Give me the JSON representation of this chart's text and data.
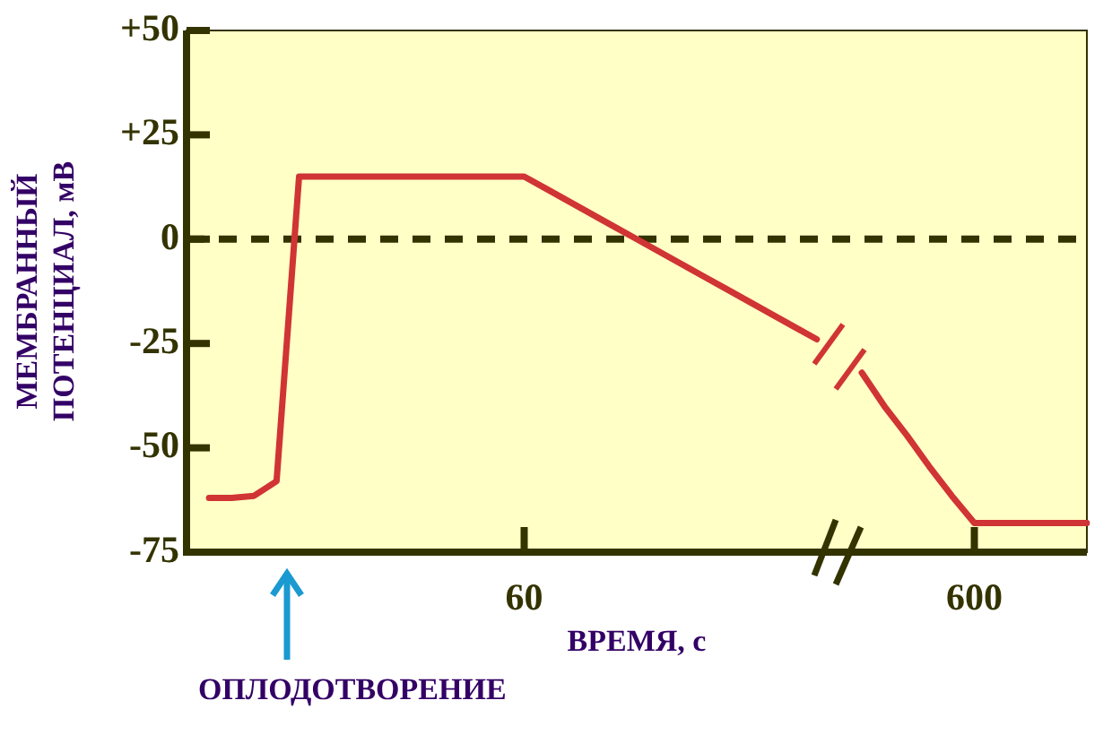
{
  "chart_data": {
    "type": "line",
    "xlabel": "ВРЕМЯ, с",
    "ylabel": "МЕМБРАННЫЙ ПОТЕНЦИАЛ, мВ",
    "categories": [
      null,
      null,
      null,
      null,
      null,
      null,
      null,
      null,
      null,
      null,
      null,
      null,
      null,
      null,
      null,
      "60",
      null,
      null,
      null,
      null,
      null,
      null,
      null,
      null,
      null,
      null,
      null,
      null,
      null,
      null,
      null,
      null,
      null,
      null,
      null,
      "600",
      null,
      null,
      null,
      null,
      null
    ],
    "series": [
      {
        "color": "#d03434",
        "values": [
          null,
          -62,
          -62,
          -61.5,
          -58,
          15,
          15,
          15,
          15,
          15,
          15,
          15,
          15,
          15,
          15,
          15,
          12,
          9,
          6,
          3,
          0,
          -3,
          -6,
          -9,
          -12,
          -15,
          -18,
          -21,
          -24,
          null,
          -32,
          -40,
          -47,
          -54.5,
          -61.5,
          -68,
          -68,
          -68,
          -68,
          -68,
          -68
        ]
      }
    ],
    "ylim": [
      -75,
      50
    ],
    "yticks": [
      {
        "value": -75,
        "label": "-75"
      },
      {
        "value": -50,
        "label": "-50"
      },
      {
        "value": -25,
        "label": "-25"
      },
      0,
      {
        "value": 25,
        "label": "+25"
      },
      {
        "value": 50,
        "label": "+50"
      }
    ],
    "ref_lines": [
      {
        "axis": "y",
        "value": 0,
        "color": "#333300",
        "line_style": "dashed"
      }
    ],
    "annotations": [
      "ОПЛОДОТВОРЕНИЕ"
    ],
    "grid": false,
    "legend": false,
    "marker": "none",
    "line_style": "solid"
  }
}
